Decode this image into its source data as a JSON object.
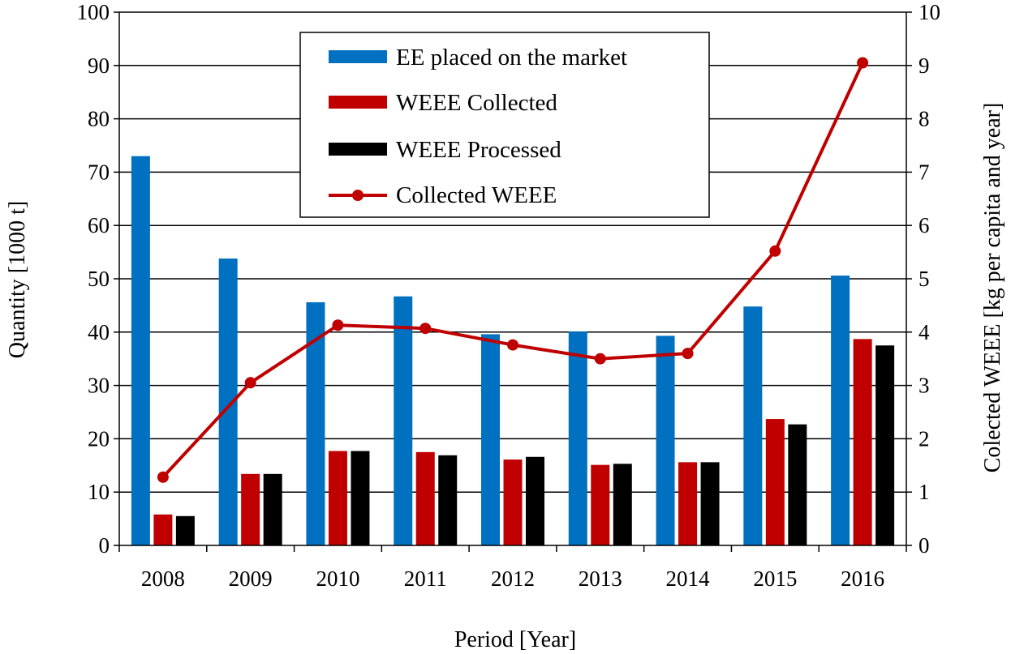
{
  "chart_data": {
    "type": "bar",
    "categories": [
      "2008",
      "2009",
      "2010",
      "2011",
      "2012",
      "2013",
      "2014",
      "2015",
      "2016"
    ],
    "series": [
      {
        "name": "EE placed on the market",
        "type": "bar",
        "axis": "left",
        "color": "#0070c0",
        "values": [
          73,
          53.8,
          45.6,
          46.7,
          39.6,
          40.1,
          39.3,
          44.8,
          50.6
        ]
      },
      {
        "name": "WEEE Collected",
        "type": "bar",
        "axis": "left",
        "color": "#c00000",
        "values": [
          5.8,
          13.4,
          17.7,
          17.5,
          16.1,
          15.1,
          15.6,
          23.7,
          38.7
        ]
      },
      {
        "name": "WEEE Processed",
        "type": "bar",
        "axis": "left",
        "color": "#000000",
        "values": [
          5.5,
          13.4,
          17.7,
          16.9,
          16.6,
          15.3,
          15.6,
          22.7,
          37.5
        ]
      },
      {
        "name": "Collected WEEE",
        "type": "line",
        "axis": "right",
        "color": "#c00000",
        "values": [
          1.28,
          3.05,
          4.13,
          4.07,
          3.76,
          3.5,
          3.6,
          5.52,
          9.05
        ]
      }
    ],
    "xlabel": "Period  [Year]",
    "ylabel": "Quantity  [1000 t]",
    "y2label": "Colected WEEE   [kg per capita and year]",
    "ylim": [
      0,
      100
    ],
    "y2lim": [
      0,
      10
    ],
    "yticks": [
      "0",
      "10",
      "20",
      "30",
      "40",
      "50",
      "60",
      "70",
      "80",
      "90",
      "100"
    ],
    "y2ticks": [
      "0",
      "1",
      "2",
      "3",
      "4",
      "5",
      "6",
      "7",
      "8",
      "9",
      "10"
    ],
    "grid": true,
    "legend_position": "top-center"
  }
}
